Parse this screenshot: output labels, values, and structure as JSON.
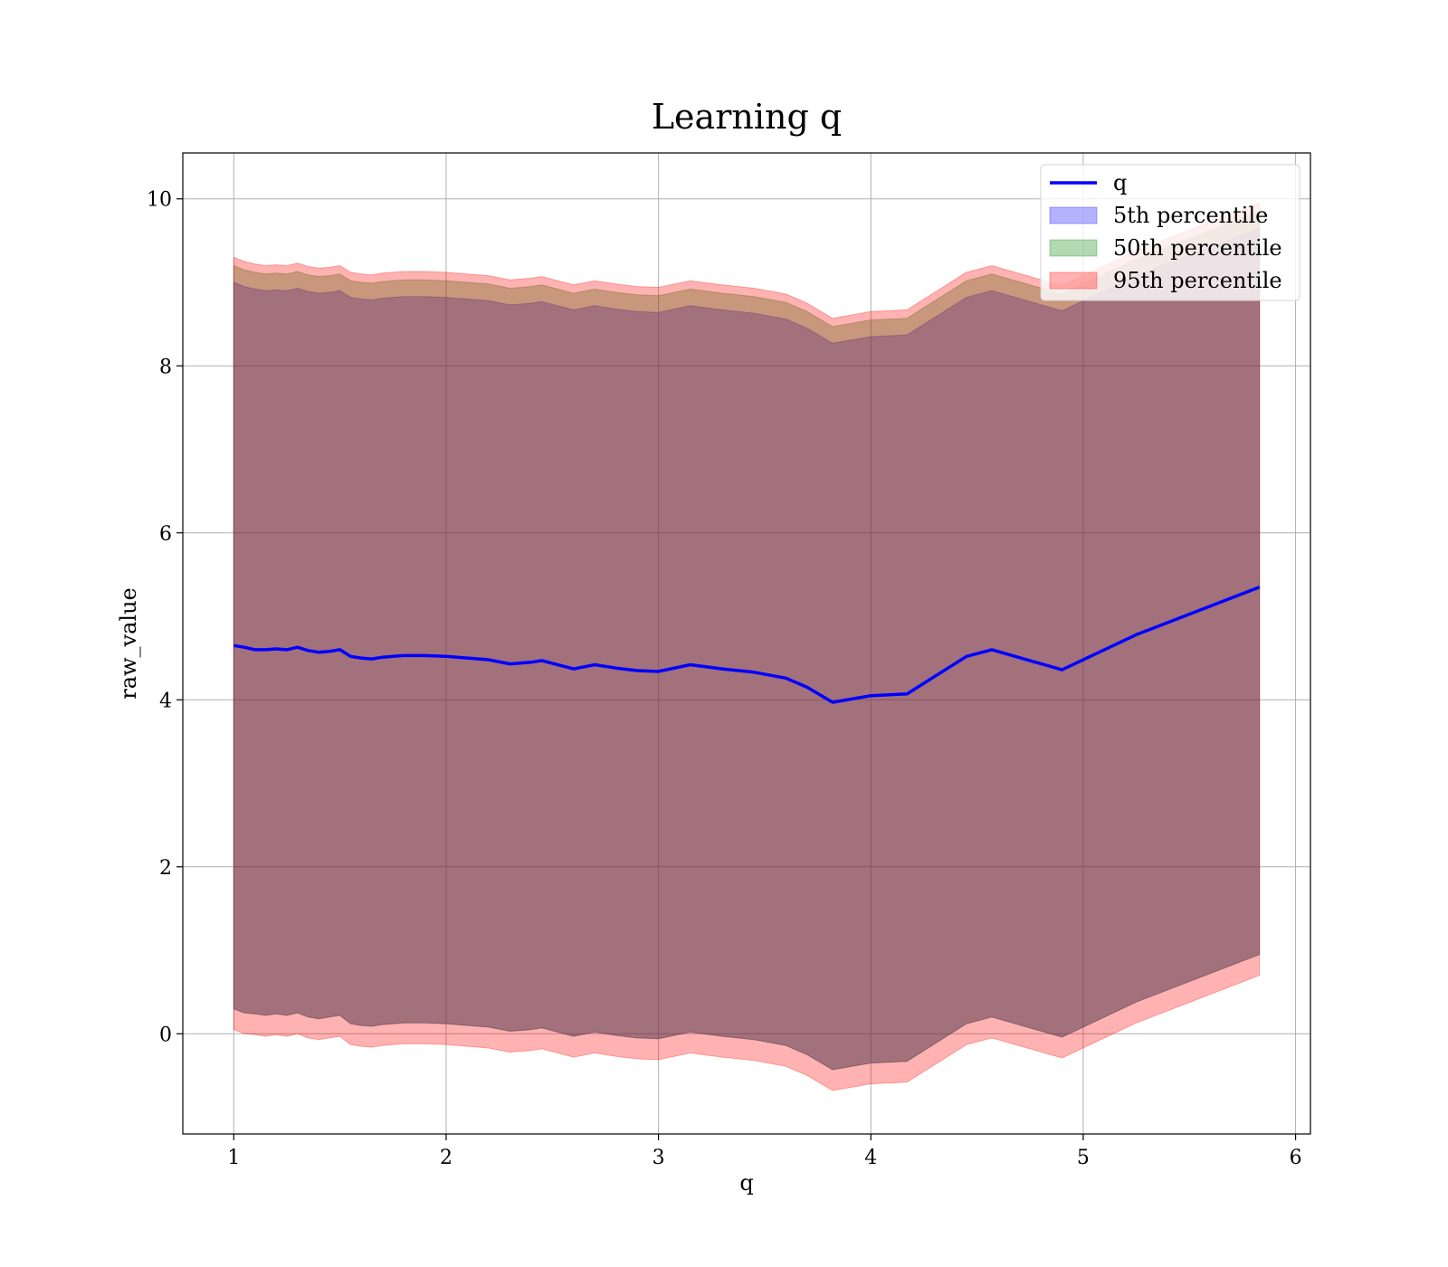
{
  "chart_data": {
    "type": "area",
    "title": "Learning q",
    "xlabel": "q",
    "ylabel": "raw_value",
    "xlim": [
      0.76,
      6.07
    ],
    "ylim": [
      -1.2,
      10.55
    ],
    "xticks": [
      1,
      2,
      3,
      4,
      5,
      6
    ],
    "yticks": [
      0,
      2,
      4,
      6,
      8,
      10
    ],
    "grid": true,
    "legend": "top-right",
    "x": [
      1.0,
      1.05,
      1.1,
      1.15,
      1.2,
      1.25,
      1.3,
      1.35,
      1.4,
      1.45,
      1.5,
      1.55,
      1.6,
      1.65,
      1.7,
      1.75,
      1.8,
      1.9,
      2.0,
      2.1,
      2.2,
      2.3,
      2.4,
      2.45,
      2.6,
      2.7,
      2.8,
      2.9,
      3.0,
      3.15,
      3.3,
      3.45,
      3.6,
      3.7,
      3.82,
      4.0,
      4.17,
      4.45,
      4.57,
      4.9,
      5.25,
      5.83
    ],
    "series": [
      {
        "name": "q",
        "color": "#0000ff",
        "values": [
          4.65,
          4.63,
          4.6,
          4.6,
          4.61,
          4.6,
          4.63,
          4.59,
          4.57,
          4.58,
          4.6,
          4.52,
          4.5,
          4.49,
          4.51,
          4.52,
          4.53,
          4.53,
          4.52,
          4.5,
          4.48,
          4.43,
          4.45,
          4.47,
          4.37,
          4.42,
          4.38,
          4.35,
          4.34,
          4.42,
          4.37,
          4.33,
          4.26,
          4.15,
          3.97,
          4.05,
          4.07,
          4.52,
          4.6,
          4.36,
          4.78,
          5.35
        ]
      },
      {
        "name": "5th percentile",
        "color": "#0000ff",
        "lower": [
          0.3,
          0.25,
          0.24,
          0.22,
          0.24,
          0.22,
          0.25,
          0.2,
          0.18,
          0.2,
          0.22,
          0.12,
          0.1,
          0.09,
          0.11,
          0.12,
          0.13,
          0.13,
          0.12,
          0.1,
          0.08,
          0.03,
          0.05,
          0.07,
          -0.03,
          0.02,
          -0.02,
          -0.05,
          -0.06,
          0.02,
          -0.03,
          -0.07,
          -0.14,
          -0.25,
          -0.43,
          -0.35,
          -0.33,
          0.12,
          0.2,
          -0.04,
          0.38,
          0.95
        ],
        "upper": [
          9.0,
          8.95,
          8.92,
          8.9,
          8.91,
          8.9,
          8.93,
          8.89,
          8.87,
          8.88,
          8.9,
          8.82,
          8.8,
          8.79,
          8.81,
          8.82,
          8.83,
          8.83,
          8.82,
          8.8,
          8.78,
          8.73,
          8.75,
          8.77,
          8.67,
          8.72,
          8.68,
          8.65,
          8.64,
          8.72,
          8.67,
          8.63,
          8.56,
          8.45,
          8.27,
          8.35,
          8.37,
          8.82,
          8.9,
          8.66,
          9.08,
          9.65
        ]
      },
      {
        "name": "50th percentile",
        "color": "#008000",
        "lower": [
          0.3,
          0.25,
          0.24,
          0.22,
          0.24,
          0.22,
          0.25,
          0.2,
          0.18,
          0.2,
          0.22,
          0.12,
          0.1,
          0.09,
          0.11,
          0.12,
          0.13,
          0.13,
          0.12,
          0.1,
          0.08,
          0.03,
          0.05,
          0.07,
          -0.03,
          0.02,
          -0.02,
          -0.05,
          -0.06,
          0.02,
          -0.03,
          -0.07,
          -0.14,
          -0.25,
          -0.43,
          -0.35,
          -0.33,
          0.12,
          0.2,
          -0.04,
          0.38,
          0.95
        ],
        "upper": [
          9.2,
          9.15,
          9.12,
          9.1,
          9.11,
          9.1,
          9.13,
          9.09,
          9.07,
          9.08,
          9.1,
          9.02,
          9.0,
          8.99,
          9.01,
          9.02,
          9.03,
          9.03,
          9.02,
          9.0,
          8.98,
          8.93,
          8.95,
          8.97,
          8.87,
          8.92,
          8.88,
          8.85,
          8.84,
          8.92,
          8.87,
          8.83,
          8.76,
          8.65,
          8.47,
          8.55,
          8.57,
          9.02,
          9.1,
          8.86,
          9.28,
          9.85
        ]
      },
      {
        "name": "95th percentile",
        "color": "#ff0000",
        "lower": [
          0.05,
          0.0,
          -0.01,
          -0.03,
          -0.01,
          -0.03,
          0.0,
          -0.05,
          -0.07,
          -0.05,
          -0.03,
          -0.13,
          -0.15,
          -0.16,
          -0.14,
          -0.13,
          -0.12,
          -0.12,
          -0.13,
          -0.15,
          -0.17,
          -0.22,
          -0.2,
          -0.18,
          -0.28,
          -0.23,
          -0.27,
          -0.3,
          -0.31,
          -0.23,
          -0.28,
          -0.32,
          -0.39,
          -0.5,
          -0.68,
          -0.6,
          -0.58,
          -0.13,
          -0.05,
          -0.29,
          0.13,
          0.7
        ],
        "upper": [
          9.3,
          9.25,
          9.22,
          9.2,
          9.21,
          9.2,
          9.23,
          9.19,
          9.17,
          9.18,
          9.2,
          9.12,
          9.1,
          9.09,
          9.11,
          9.12,
          9.13,
          9.13,
          9.12,
          9.1,
          9.08,
          9.03,
          9.05,
          9.07,
          8.97,
          9.02,
          8.98,
          8.95,
          8.94,
          9.02,
          8.97,
          8.93,
          8.86,
          8.75,
          8.57,
          8.65,
          8.67,
          9.12,
          9.2,
          8.96,
          9.38,
          9.95
        ]
      }
    ]
  }
}
